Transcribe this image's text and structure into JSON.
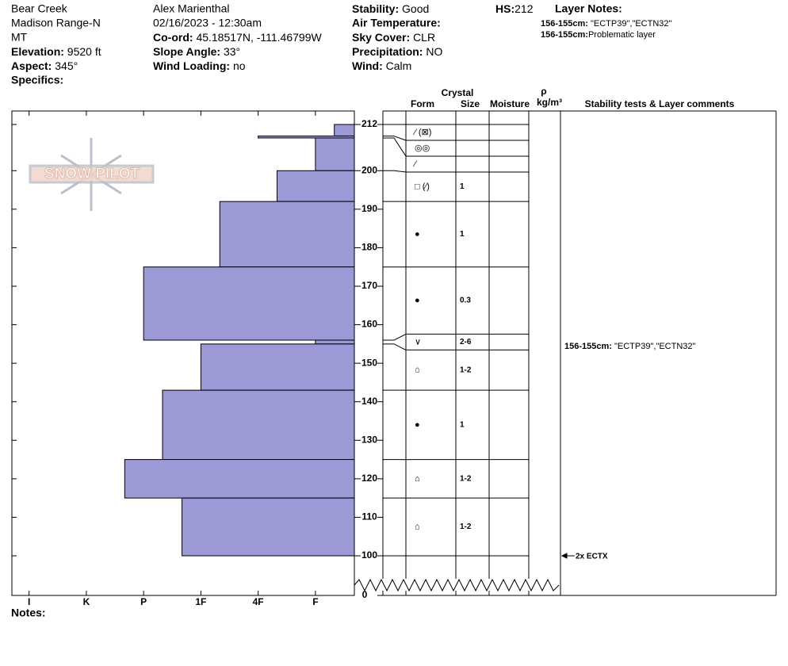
{
  "header": {
    "location": "Bear Creek",
    "range": "Madison Range-N",
    "state": "MT",
    "elevation": {
      "label": "Elevation:",
      "value": "9520 ft"
    },
    "aspect": {
      "label": "Aspect:",
      "value": "345°"
    },
    "specifics": {
      "label": "Specifics:"
    },
    "observer": "Alex Marienthal",
    "datetime": "02/16/2023 - 12:30am",
    "coord": {
      "label": "Co-ord:",
      "value": "45.18517N, -111.46799W"
    },
    "slope": {
      "label": "Slope Angle:",
      "value": "33°"
    },
    "wind_loading": {
      "label": "Wind Loading:",
      "value": "no"
    },
    "stability": {
      "label": "Stability:",
      "value": "Good"
    },
    "air_temp": {
      "label": "Air Temperature:"
    },
    "sky": {
      "label": "Sky Cover:",
      "value": "CLR"
    },
    "precip": {
      "label": "Precipitation:",
      "value": "NO"
    },
    "wind": {
      "label": "Wind:",
      "value": "Calm"
    },
    "hs": {
      "label": "HS:",
      "value": 212
    },
    "layer_notes": {
      "title": "Layer Notes:",
      "items": [
        {
          "range": "156-155cm:",
          "text": "\"ECTP39\",\"ECTN32\""
        },
        {
          "range": "156-155cm:",
          "text": "Problematic layer"
        }
      ]
    }
  },
  "logo": "SNOW PILOT",
  "profile": {
    "height_lim": [
      100,
      212
    ],
    "height_ticks": [
      100,
      110,
      120,
      130,
      140,
      150,
      160,
      170,
      180,
      190,
      200,
      212
    ],
    "base_tick": 0,
    "hardness_lim": [
      0.32,
      6.3
    ],
    "hardness_ticks": [
      {
        "value": 6,
        "label": "I"
      },
      {
        "value": 5,
        "label": "K"
      },
      {
        "value": 4,
        "label": "P"
      },
      {
        "value": 3,
        "label": "1F"
      },
      {
        "value": 2,
        "label": "4F"
      },
      {
        "value": 1,
        "label": "F"
      }
    ],
    "columns": {
      "crystal": "Crystal",
      "form": "Form",
      "size": "Size",
      "moisture": "Moisture",
      "density_symbol": "ρ",
      "density_unit": "kg/m³",
      "comments": "Stability tests & Layer comments"
    },
    "layers": [
      {
        "top": 212,
        "bottom": 209,
        "hardness": 0.67,
        "form": "⁄ (⊠)"
      },
      {
        "top": 209,
        "bottom": 208.5,
        "hardness": 2,
        "form": "◎◎"
      },
      {
        "top": 208.5,
        "bottom": 200,
        "hardness": 1,
        "form": "⁄"
      },
      {
        "top": 200,
        "bottom": 192,
        "hardness": 1.67,
        "form": "□ (⁄)",
        "size": "1"
      },
      {
        "top": 192,
        "bottom": 175,
        "hardness": 2.67,
        "form": "●",
        "size": "1"
      },
      {
        "top": 175,
        "bottom": 156,
        "hardness": 4,
        "form": "●",
        "size": "0.3"
      },
      {
        "top": 156,
        "bottom": 155,
        "hardness": 1,
        "form": "∨",
        "size": "2-6"
      },
      {
        "top": 155,
        "bottom": 143,
        "hardness": 3,
        "form": "⌂",
        "size": "1-2"
      },
      {
        "top": 143,
        "bottom": 125,
        "hardness": 3.67,
        "form": "●",
        "size": "1"
      },
      {
        "top": 125,
        "bottom": 115,
        "hardness": 4.33,
        "form": "⌂",
        "size": "1-2"
      },
      {
        "top": 115,
        "bottom": 100,
        "hardness": 3.33,
        "form": "⌂",
        "size": "1-2"
      }
    ],
    "comments": [
      {
        "range": "156-155cm:",
        "text": "\"ECTP39\",\"ECTN32\""
      },
      {
        "text": "2x ECTX"
      }
    ]
  },
  "notes": {
    "label": "Notes:"
  }
}
